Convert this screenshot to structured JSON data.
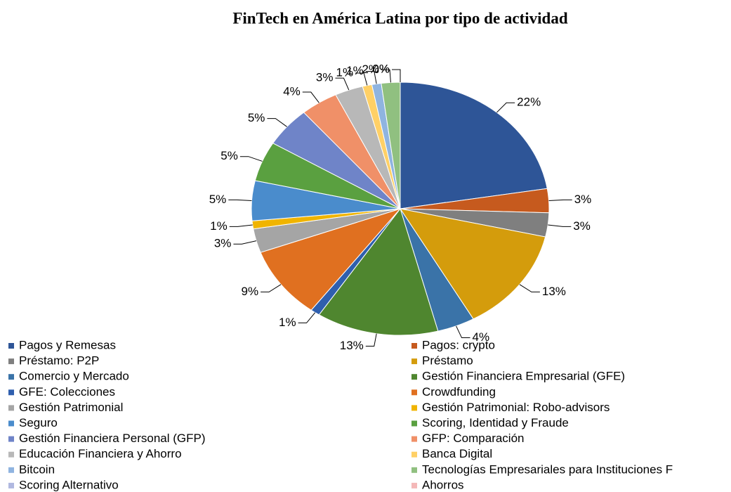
{
  "chart_data": {
    "type": "pie",
    "title": "FinTech en América Latina por tipo de actividad",
    "categories": [
      "Pagos y Remesas",
      "Pagos: crypto",
      "Préstamo: P2P",
      "Préstamo",
      "Comercio y Mercado",
      "Gestión Financiera Empresarial (GFE)",
      "GFE: Colecciones",
      "Crowdfunding",
      "Gestión Patrimonial",
      "Gestión Patrimonial: Robo-advisors",
      "Seguro",
      "Scoring, Identidad y Fraude",
      "Gestión Financiera Personal (GFP)",
      "GFP: Comparación",
      "Educación Financiera y Ahorro",
      "Banca Digital",
      "Bitcoin",
      "Tecnologías Empresariales para Instituciones F",
      "Scoring Alternativo",
      "Ahorros"
    ],
    "values": [
      22,
      3,
      3,
      13,
      4,
      13,
      1,
      9,
      3,
      1,
      5,
      5,
      5,
      4,
      3,
      1,
      1,
      2,
      0,
      0
    ],
    "value_labels": [
      "22%",
      "3%",
      "3%",
      "13%",
      "4%",
      "13%",
      "1%",
      "9%",
      "3%",
      "1%",
      "5%",
      "5%",
      "5%",
      "4%",
      "3%",
      "1%",
      "1%",
      "2%",
      "0%",
      "0%"
    ],
    "colors": [
      "#2e5597",
      "#c65a1e",
      "#7f7f7f",
      "#d49c0c",
      "#3a73a8",
      "#4f862f",
      "#2f5fae",
      "#e07020",
      "#a5a5a5",
      "#f0b400",
      "#4a8ccc",
      "#5aa040",
      "#6f84c8",
      "#f09068",
      "#b8b8b8",
      "#ffd066",
      "#8fb4e0",
      "#90c080",
      "#b0b8e0",
      "#f4b8b8"
    ]
  }
}
